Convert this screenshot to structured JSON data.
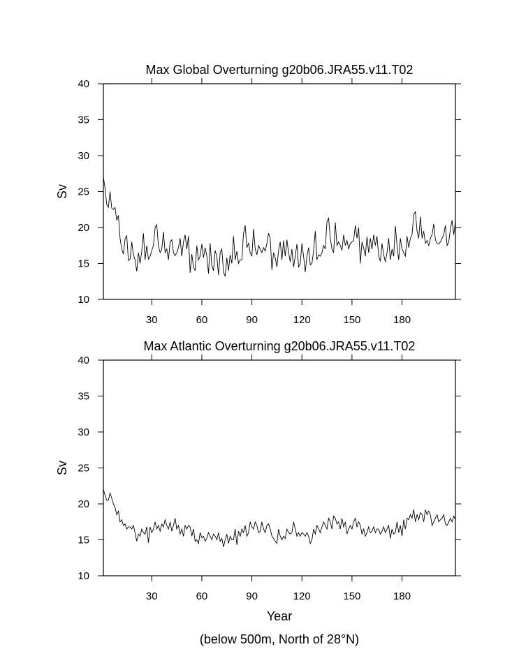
{
  "chart_data": [
    {
      "type": "line",
      "title": "Max Global Overturning g20b06.JRA55.v11.T02",
      "ylabel": "Sv",
      "xlim": [
        1,
        212
      ],
      "ylim": [
        10,
        40
      ],
      "xticks": [
        30,
        60,
        90,
        120,
        150,
        180
      ],
      "yticks": [
        10,
        15,
        20,
        25,
        30,
        35,
        40
      ],
      "color": "#000000",
      "x": [
        1,
        2,
        3,
        4,
        5,
        6,
        7,
        8,
        9,
        10,
        11,
        12,
        13,
        14,
        15,
        16,
        17,
        18,
        19,
        20,
        21,
        22,
        23,
        24,
        25,
        26,
        27,
        28,
        29,
        30,
        31,
        32,
        33,
        34,
        35,
        36,
        37,
        38,
        39,
        40,
        41,
        42,
        43,
        44,
        45,
        46,
        47,
        48,
        49,
        50,
        51,
        52,
        53,
        54,
        55,
        56,
        57,
        58,
        59,
        60,
        61,
        62,
        63,
        64,
        65,
        66,
        67,
        68,
        69,
        70,
        71,
        72,
        73,
        74,
        75,
        76,
        77,
        78,
        79,
        80,
        81,
        82,
        83,
        84,
        85,
        86,
        87,
        88,
        89,
        90,
        91,
        92,
        93,
        94,
        95,
        96,
        97,
        98,
        99,
        100,
        101,
        102,
        103,
        104,
        105,
        106,
        107,
        108,
        109,
        110,
        111,
        112,
        113,
        114,
        115,
        116,
        117,
        118,
        119,
        120,
        121,
        122,
        123,
        124,
        125,
        126,
        127,
        128,
        129,
        130,
        131,
        132,
        133,
        134,
        135,
        136,
        137,
        138,
        139,
        140,
        141,
        142,
        143,
        144,
        145,
        146,
        147,
        148,
        149,
        150,
        151,
        152,
        153,
        154,
        155,
        156,
        157,
        158,
        159,
        160,
        161,
        162,
        163,
        164,
        165,
        166,
        167,
        168,
        169,
        170,
        171,
        172,
        173,
        174,
        175,
        176,
        177,
        178,
        179,
        180,
        181,
        182,
        183,
        184,
        185,
        186,
        187,
        188,
        189,
        190,
        191,
        192,
        193,
        194,
        195,
        196,
        197,
        198,
        199,
        200,
        201,
        202,
        203,
        204,
        205,
        206,
        207,
        208,
        209,
        210,
        211,
        212
      ],
      "values": [
        27.0,
        25.5,
        23.2,
        22.8,
        25.0,
        22.7,
        22.5,
        22.8,
        21.0,
        21.7,
        18.5,
        17.0,
        16.3,
        18.4,
        18.9,
        15.4,
        15.6,
        18.0,
        16.2,
        15.5,
        13.9,
        16.5,
        15.0,
        16.7,
        19.2,
        15.5,
        17.5,
        15.6,
        16.0,
        16.8,
        17.5,
        20.0,
        20.4,
        17.4,
        16.5,
        17.0,
        19.4,
        16.5,
        17.0,
        15.5,
        18.0,
        18.3,
        16.5,
        16.1,
        16.5,
        17.2,
        18.5,
        16.0,
        18.0,
        19.0,
        17.0,
        18.8,
        13.7,
        16.3,
        14.5,
        14.0,
        17.5,
        15.5,
        16.0,
        17.7,
        15.8,
        17.2,
        16.0,
        13.6,
        17.8,
        14.7,
        14.0,
        16.8,
        16.0,
        13.4,
        16.5,
        17.0,
        13.8,
        13.2,
        15.8,
        14.0,
        16.2,
        15.0,
        18.8,
        15.5,
        16.7,
        15.0,
        15.5,
        15.5,
        19.2,
        20.3,
        17.2,
        17.8,
        16.5,
        16.0,
        19.8,
        17.0,
        16.2,
        17.5,
        17.0,
        16.5,
        17.2,
        16.7,
        17.8,
        19.2,
        18.5,
        14.1,
        16.5,
        15.8,
        14.5,
        16.8,
        18.0,
        15.5,
        18.2,
        16.0,
        18.3,
        16.5,
        15.2,
        17.0,
        14.5,
        16.0,
        17.7,
        14.5,
        15.0,
        17.8,
        16.0,
        13.8,
        16.0,
        17.2,
        14.8,
        15.0,
        16.8,
        19.5,
        15.5,
        16.2,
        16.0,
        16.5,
        17.5,
        17.0,
        20.8,
        21.3,
        18.5,
        17.0,
        16.5,
        20.7,
        17.5,
        18.0,
        17.5,
        16.8,
        19.0,
        17.5,
        18.2,
        17.0,
        17.8,
        18.0,
        18.2,
        20.3,
        18.5,
        20.0,
        15.0,
        18.0,
        17.2,
        16.0,
        18.7,
        16.5,
        18.5,
        17.0,
        19.0,
        17.5,
        18.8,
        16.0,
        15.3,
        17.8,
        16.2,
        15.2,
        16.5,
        18.5,
        15.5,
        17.0,
        16.0,
        20.2,
        17.5,
        15.5,
        18.5,
        17.0,
        16.5,
        16.0,
        18.8,
        17.2,
        18.5,
        19.0,
        21.8,
        22.2,
        19.5,
        18.5,
        21.5,
        18.5,
        19.5,
        17.8,
        18.2,
        17.5,
        18.5,
        19.0,
        20.5,
        18.3,
        17.8,
        17.7,
        18.0,
        18.5,
        19.0,
        20.3,
        17.5,
        18.0,
        19.8,
        21.0,
        19.0,
        20.8
      ]
    },
    {
      "type": "line",
      "title": "Max Atlantic Overturning g20b06.JRA55.v11.T02",
      "ylabel": "Sv",
      "xlabel": "Year",
      "footnote": "(below 500m, North of 28°N)",
      "xlim": [
        1,
        212
      ],
      "ylim": [
        10,
        40
      ],
      "xticks": [
        30,
        60,
        90,
        120,
        150,
        180
      ],
      "yticks": [
        10,
        15,
        20,
        25,
        30,
        35,
        40
      ],
      "color": "#000000",
      "x": [
        1,
        2,
        3,
        4,
        5,
        6,
        7,
        8,
        9,
        10,
        11,
        12,
        13,
        14,
        15,
        16,
        17,
        18,
        19,
        20,
        21,
        22,
        23,
        24,
        25,
        26,
        27,
        28,
        29,
        30,
        31,
        32,
        33,
        34,
        35,
        36,
        37,
        38,
        39,
        40,
        41,
        42,
        43,
        44,
        45,
        46,
        47,
        48,
        49,
        50,
        51,
        52,
        53,
        54,
        55,
        56,
        57,
        58,
        59,
        60,
        61,
        62,
        63,
        64,
        65,
        66,
        67,
        68,
        69,
        70,
        71,
        72,
        73,
        74,
        75,
        76,
        77,
        78,
        79,
        80,
        81,
        82,
        83,
        84,
        85,
        86,
        87,
        88,
        89,
        90,
        91,
        92,
        93,
        94,
        95,
        96,
        97,
        98,
        99,
        100,
        101,
        102,
        103,
        104,
        105,
        106,
        107,
        108,
        109,
        110,
        111,
        112,
        113,
        114,
        115,
        116,
        117,
        118,
        119,
        120,
        121,
        122,
        123,
        124,
        125,
        126,
        127,
        128,
        129,
        130,
        131,
        132,
        133,
        134,
        135,
        136,
        137,
        138,
        139,
        140,
        141,
        142,
        143,
        144,
        145,
        146,
        147,
        148,
        149,
        150,
        151,
        152,
        153,
        154,
        155,
        156,
        157,
        158,
        159,
        160,
        161,
        162,
        163,
        164,
        165,
        166,
        167,
        168,
        169,
        170,
        171,
        172,
        173,
        174,
        175,
        176,
        177,
        178,
        179,
        180,
        181,
        182,
        183,
        184,
        185,
        186,
        187,
        188,
        189,
        190,
        191,
        192,
        193,
        194,
        195,
        196,
        197,
        198,
        199,
        200,
        201,
        202,
        203,
        204,
        205,
        206,
        207,
        208,
        209,
        210,
        211,
        212
      ],
      "values": [
        22.0,
        21.2,
        20.5,
        20.5,
        21.5,
        20.8,
        20.0,
        19.5,
        18.5,
        19.0,
        17.5,
        17.8,
        17.0,
        17.2,
        16.5,
        16.8,
        16.8,
        16.5,
        17.0,
        16.0,
        14.8,
        15.8,
        15.5,
        16.5,
        16.0,
        15.8,
        16.8,
        14.6,
        16.8,
        16.0,
        16.5,
        17.5,
        16.5,
        17.0,
        16.2,
        17.2,
        16.8,
        17.8,
        17.0,
        16.5,
        17.5,
        16.2,
        17.0,
        18.0,
        16.5,
        17.0,
        15.8,
        16.5,
        15.5,
        17.0,
        16.5,
        17.0,
        16.8,
        15.5,
        16.5,
        14.8,
        15.0,
        14.5,
        16.0,
        15.3,
        15.5,
        14.8,
        15.2,
        16.0,
        15.5,
        15.0,
        15.8,
        15.5,
        15.0,
        16.0,
        14.8,
        15.2,
        14.0,
        15.0,
        15.8,
        14.5,
        15.5,
        15.0,
        15.0,
        16.5,
        14.3,
        16.2,
        15.5,
        16.5,
        16.0,
        17.0,
        15.5,
        16.0,
        17.5,
        16.8,
        16.5,
        17.5,
        17.0,
        16.0,
        16.2,
        17.5,
        16.5,
        16.0,
        17.0,
        17.2,
        16.5,
        15.5,
        15.2,
        14.8,
        14.5,
        16.5,
        15.5,
        15.0,
        15.5,
        15.2,
        16.5,
        16.0,
        15.8,
        16.0,
        17.5,
        16.5,
        15.5,
        16.0,
        15.5,
        16.0,
        15.8,
        15.5,
        16.0,
        15.5,
        14.5,
        15.0,
        16.5,
        15.8,
        17.0,
        16.5,
        16.0,
        16.8,
        17.5,
        17.0,
        16.5,
        18.0,
        17.5,
        16.5,
        18.3,
        18.0,
        17.2,
        17.5,
        16.5,
        18.0,
        16.8,
        17.5,
        15.8,
        16.5,
        17.0,
        16.5,
        17.5,
        18.0,
        16.8,
        17.5,
        17.0,
        15.8,
        16.5,
        15.5,
        16.0,
        16.8,
        16.0,
        16.2,
        16.8,
        16.0,
        16.5,
        16.5,
        15.8,
        16.2,
        16.8,
        16.0,
        16.5,
        17.0,
        15.2,
        16.5,
        15.8,
        16.0,
        17.5,
        16.0,
        17.0,
        15.5,
        17.8,
        16.5,
        18.0,
        17.8,
        18.5,
        18.0,
        19.2,
        17.5,
        18.5,
        17.8,
        18.8,
        18.5,
        17.5,
        19.2,
        18.5,
        19.0,
        18.5,
        17.0,
        17.5,
        18.0,
        18.5,
        17.5,
        17.8,
        18.0,
        18.5,
        17.2,
        17.0,
        17.5,
        18.0,
        17.5,
        18.3,
        17.8
      ]
    }
  ]
}
